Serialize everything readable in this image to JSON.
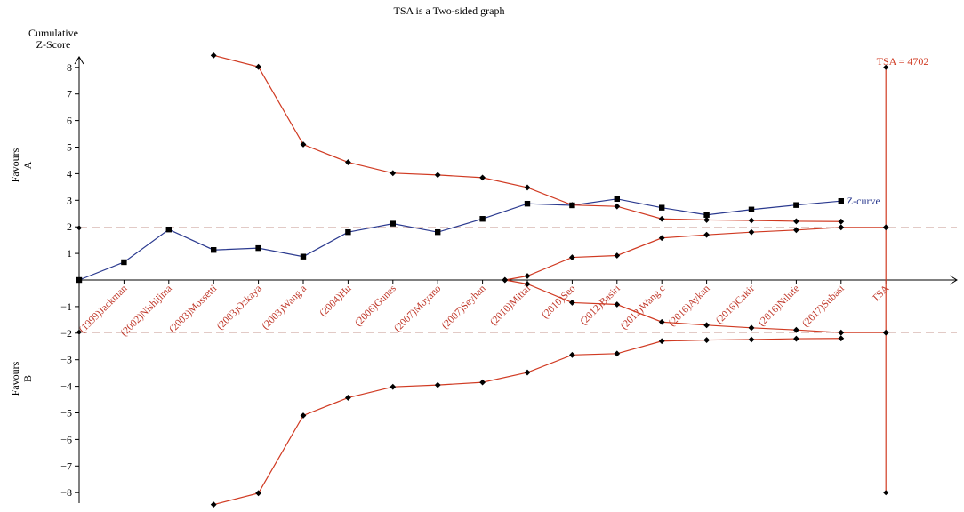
{
  "chart_data": {
    "type": "line",
    "title": "TSA is a Two-sided graph",
    "ylabel": "Cumulative Z-Score",
    "favours_a_label": "Favours A",
    "favours_b_label": "Favours B",
    "ylim": [
      -8.5,
      8.5
    ],
    "y_ticks": [
      -8,
      -7,
      -6,
      -5,
      -4,
      -3,
      -2,
      -1,
      1,
      2,
      3,
      4,
      5,
      6,
      7,
      8
    ],
    "categories": [
      "(1999)Jackman",
      "(2002)Nishijima",
      "(2003)Mossetti",
      "(2003)Ozkaya",
      "(2003)Wang a",
      "(2004)Hu",
      "(2006)Gunes",
      "(2007)Moyano",
      "(2007)Seyhan",
      "(2010)Mittal",
      "(2010)Seo",
      "(2012)Basiri",
      "(2012)Wang c",
      "(2016)Aykan",
      "(2016)Cakir",
      "(2016)Nilufe",
      "(2017)Subasi",
      "TSA"
    ],
    "tsa_label": "TSA = 4702",
    "colors": {
      "z_curve": "#2b3a8f",
      "boundary": "#d03a22",
      "conventional": "#8b2a1e",
      "axis": "#000000",
      "study_label": "#c0392b"
    },
    "series": [
      {
        "name": "Z-curve",
        "x": [
          0,
          1,
          2,
          3,
          4,
          5,
          6,
          7,
          8,
          9,
          10,
          11,
          12,
          13,
          14,
          15,
          16,
          17
        ],
        "values": [
          0,
          0.67,
          1.9,
          1.13,
          1.2,
          0.88,
          1.8,
          2.12,
          1.8,
          2.3,
          2.87,
          2.81,
          3.05,
          2.72,
          2.45,
          2.65,
          2.82,
          2.97
        ]
      },
      {
        "name": "",
        "x": [
          3,
          4,
          5,
          6,
          7,
          8,
          9,
          10,
          11,
          12,
          13,
          14,
          15,
          16,
          17
        ],
        "values": [
          8.45,
          8.02,
          5.1,
          4.43,
          4.02,
          3.95,
          3.85,
          3.48,
          2.82,
          2.77,
          2.3,
          2.26,
          2.24,
          2.21,
          2.2
        ]
      },
      {
        "name": "",
        "x": [
          3,
          4,
          5,
          6,
          7,
          8,
          9,
          10,
          11,
          12,
          13,
          14,
          15,
          16,
          17
        ],
        "values": [
          -8.45,
          -8.02,
          -5.1,
          -4.43,
          -4.02,
          -3.95,
          -3.85,
          -3.48,
          -2.82,
          -2.77,
          -2.3,
          -2.26,
          -2.24,
          -2.21,
          -2.2
        ]
      },
      {
        "name": "",
        "x": [
          9.5,
          10,
          11,
          12,
          13,
          14,
          15,
          16,
          17,
          18
        ],
        "values": [
          0,
          0.15,
          0.85,
          0.92,
          1.58,
          1.7,
          1.8,
          1.88,
          1.98,
          1.98
        ]
      },
      {
        "name": "",
        "x": [
          9.5,
          10,
          11,
          12,
          13,
          14,
          15,
          16,
          17,
          18
        ],
        "values": [
          0,
          -0.15,
          -0.85,
          -0.92,
          -1.58,
          -1.7,
          -1.8,
          -1.88,
          -1.98,
          -1.98
        ]
      }
    ],
    "conventional_boundaries": [
      1.96,
      -1.96
    ],
    "tsa_line": {
      "x": 18,
      "ymin": -8,
      "ymax": 8
    },
    "grid": false,
    "legend": "none"
  }
}
